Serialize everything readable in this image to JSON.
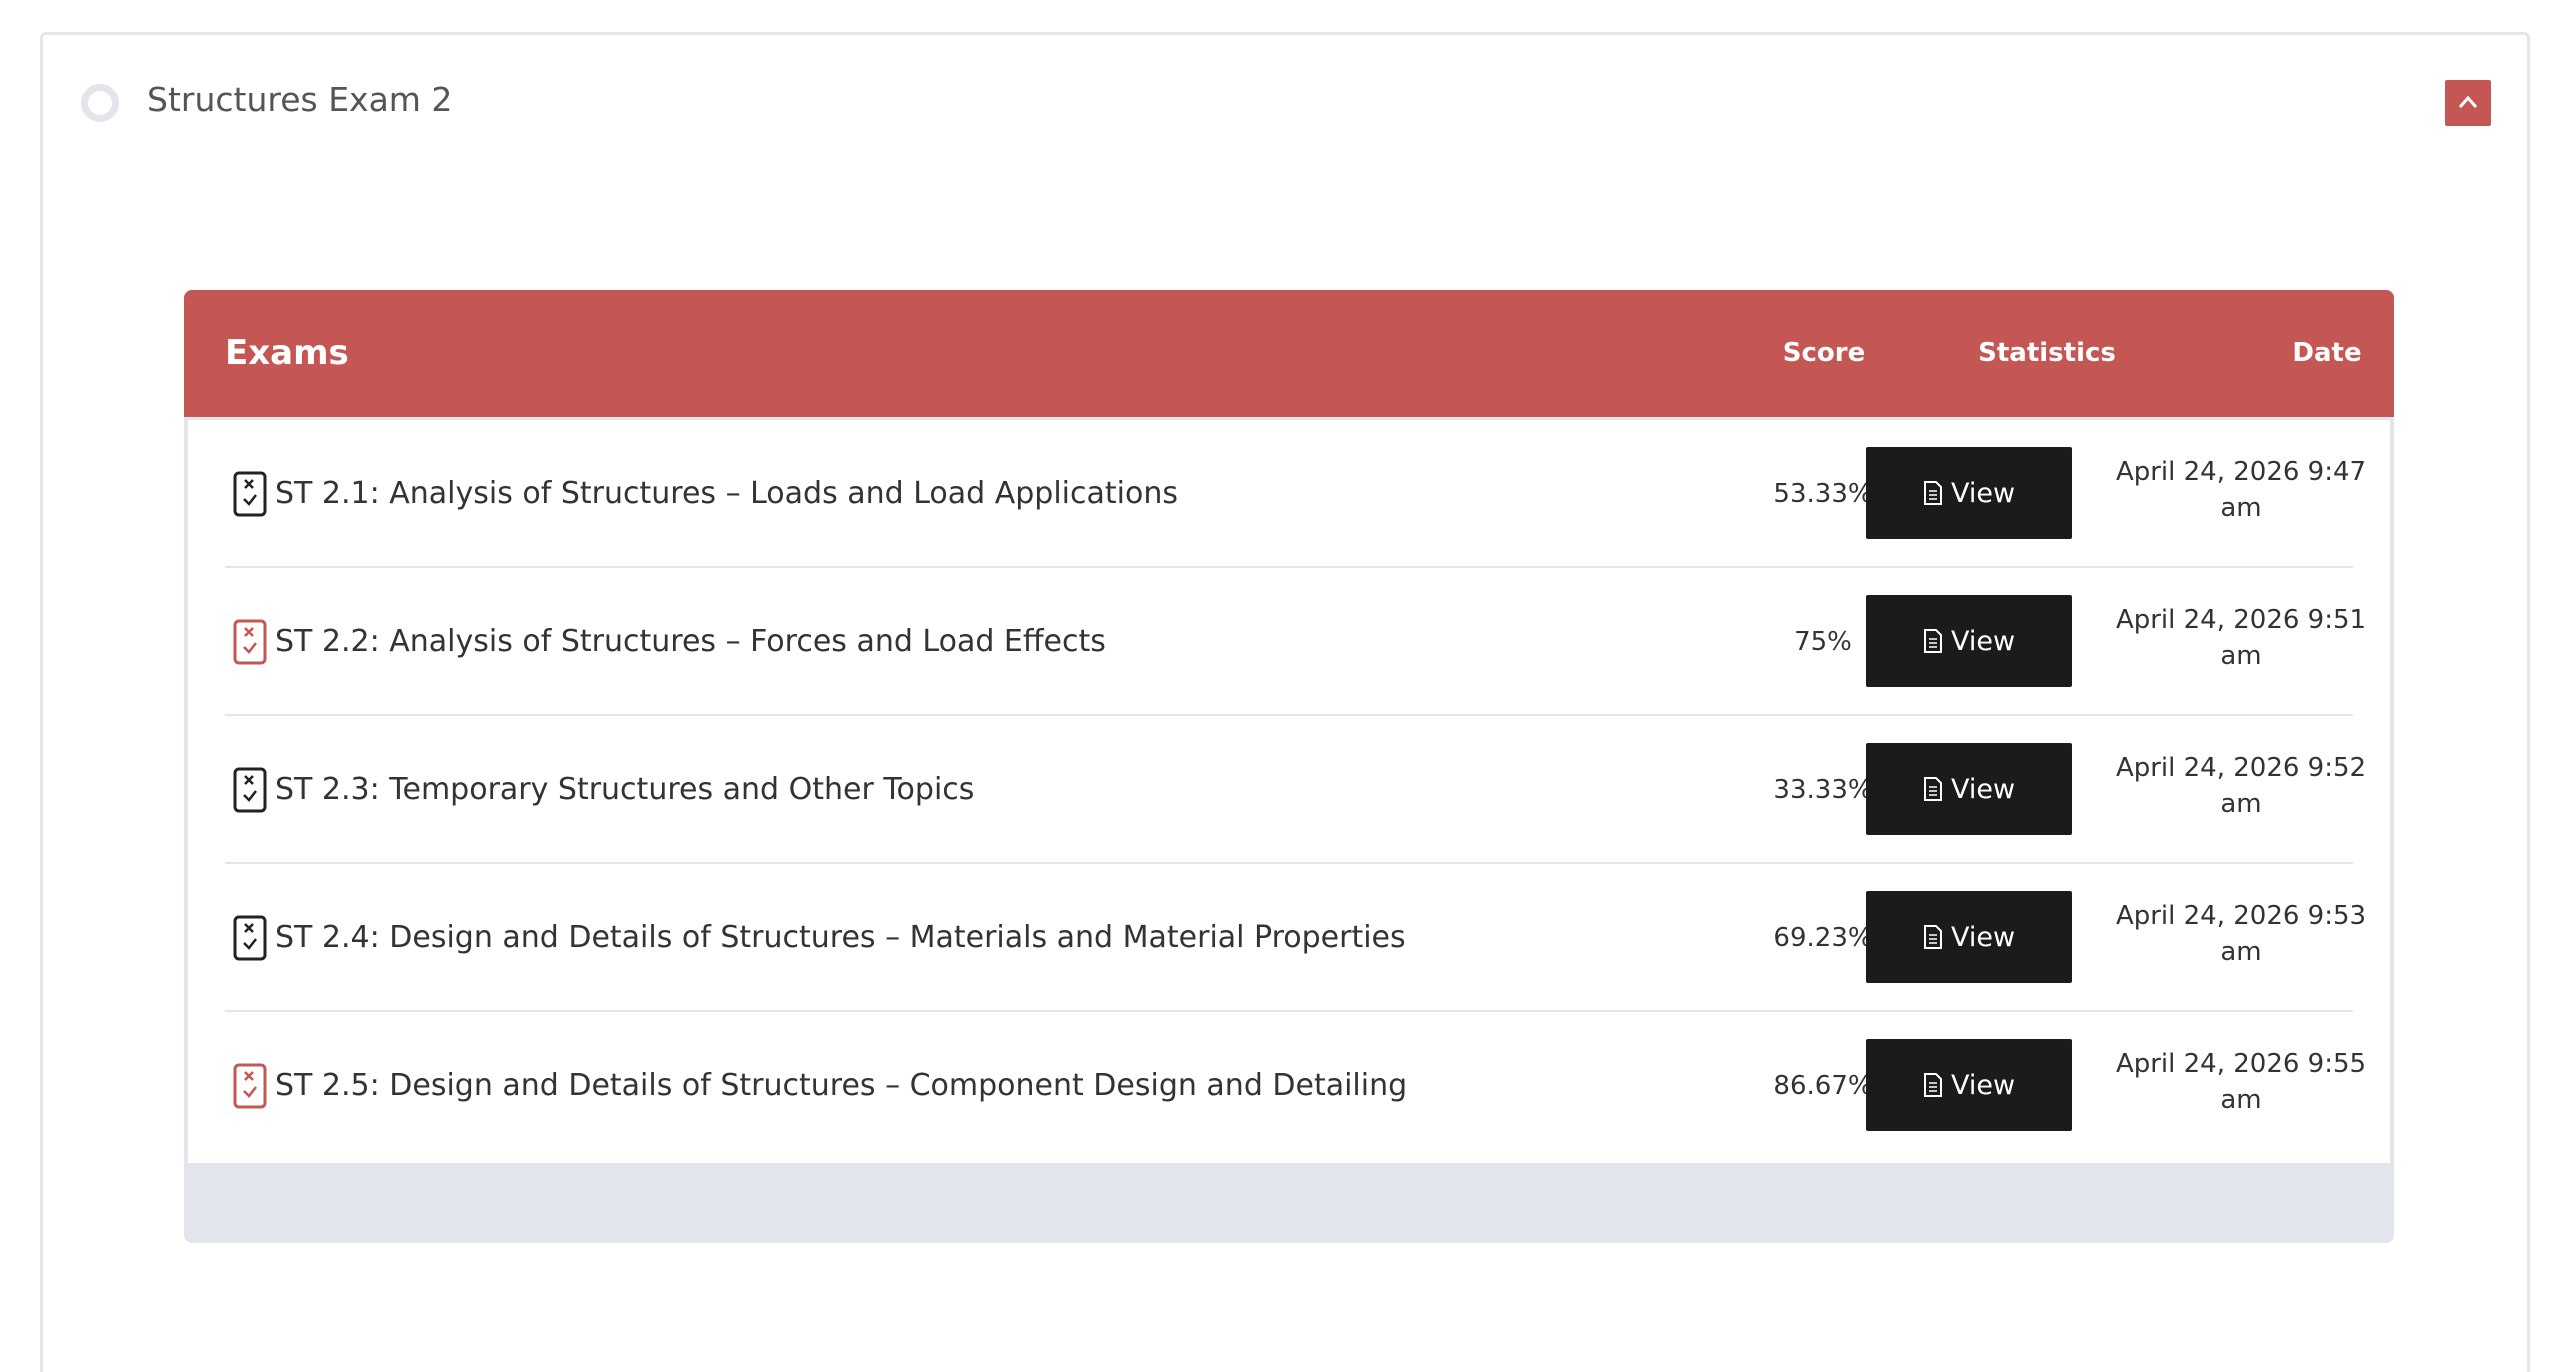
{
  "panel": {
    "title": "Structures Exam 2"
  },
  "colors": {
    "accent": "#c45754",
    "button_dark": "#1b1b1b",
    "icon_default": "#222222",
    "icon_highlight": "#c45754"
  },
  "table": {
    "headers": {
      "exams": "Exams",
      "score": "Score",
      "statistics": "Statistics",
      "date": "Date"
    },
    "rows": [
      {
        "title": "ST 2.1: Analysis of Structures – Loads and Load Applications",
        "score": "53.33%",
        "view_label": "View",
        "date_line1": "April 24, 2026 9:47",
        "date_line2": "am",
        "icon": "quiz-fail-icon"
      },
      {
        "title": "ST 2.2: Analysis of Structures – Forces and Load Effects",
        "score": "75%",
        "view_label": "View",
        "date_line1": "April 24, 2026 9:51",
        "date_line2": "am",
        "icon": "quiz-pass-icon"
      },
      {
        "title": "ST 2.3: Temporary Structures and Other Topics",
        "score": "33.33%",
        "view_label": "View",
        "date_line1": "April 24, 2026 9:52",
        "date_line2": "am",
        "icon": "quiz-fail-icon"
      },
      {
        "title": "ST 2.4: Design and Details of Structures – Materials and Material Properties",
        "score": "69.23%",
        "view_label": "View",
        "date_line1": "April 24, 2026 9:53",
        "date_line2": "am",
        "icon": "quiz-fail-icon"
      },
      {
        "title": "ST 2.5: Design and Details of Structures – Component Design and Detailing",
        "score": "86.67%",
        "view_label": "View",
        "date_line1": "April 24, 2026 9:55",
        "date_line2": "am",
        "icon": "quiz-pass-icon"
      }
    ]
  }
}
